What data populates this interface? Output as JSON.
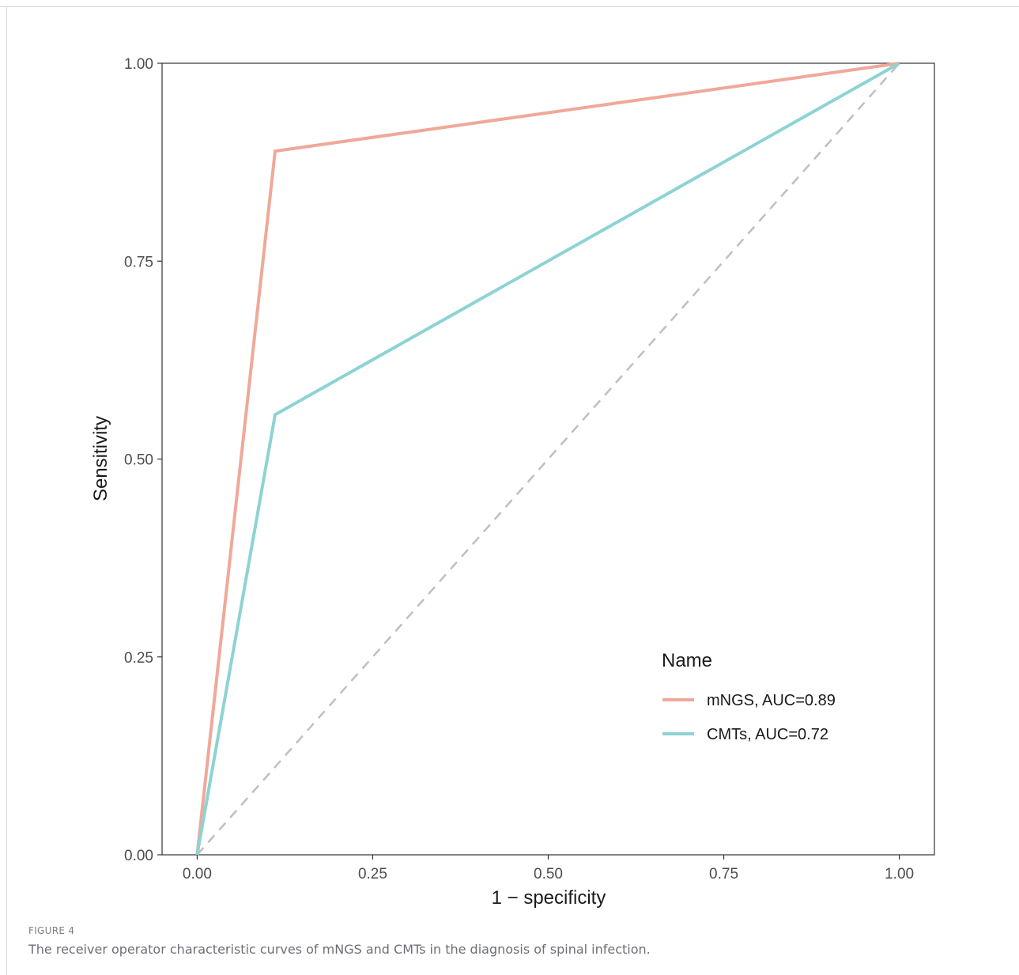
{
  "figure": {
    "label": "FIGURE 4",
    "caption": "The receiver operator characteristic curves of mNGS and CMTs in the diagnosis of spinal infection."
  },
  "colors": {
    "mngs": "#f0a899",
    "cmts": "#8dd3d4",
    "reference": "#bfbfbf",
    "axis": "#333333",
    "tick_text": "#4d4d4d",
    "label_text": "#1a1a1a"
  },
  "chart_data": {
    "type": "line",
    "title": "",
    "xlabel": "1 − specificity",
    "ylabel": "Sensitivity",
    "xlim": [
      -0.05,
      1.05
    ],
    "ylim": [
      0,
      1
    ],
    "x_ticks": [
      0,
      0.25,
      0.5,
      0.75,
      1
    ],
    "x_tick_labels": [
      "0.00",
      "0.25",
      "0.50",
      "0.75",
      "1.00"
    ],
    "y_ticks": [
      0,
      0.25,
      0.5,
      0.75,
      1
    ],
    "y_tick_labels": [
      "0.00",
      "0.25",
      "0.50",
      "0.75",
      "1.00"
    ],
    "grid": false,
    "legend": {
      "title": "Name",
      "position": "bottom-right"
    },
    "series": [
      {
        "name": "mNGS, AUC=0.89",
        "color_key": "mngs",
        "x": [
          0,
          0.111,
          1
        ],
        "y": [
          0,
          0.889,
          1
        ]
      },
      {
        "name": "CMTs, AUC=0.72",
        "color_key": "cmts",
        "x": [
          0,
          0.111,
          1
        ],
        "y": [
          0,
          0.556,
          1
        ]
      }
    ],
    "reference_line": {
      "style": "dashed",
      "x": [
        0,
        1
      ],
      "y": [
        0,
        1
      ]
    }
  }
}
